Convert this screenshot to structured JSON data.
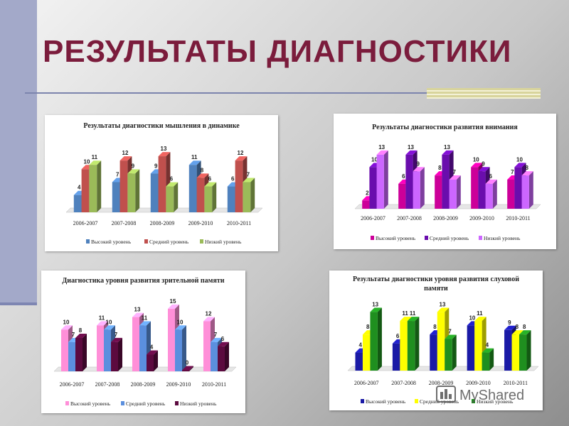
{
  "page": {
    "title": "РЕЗУЛЬТАТЫ ДИАГНОСТИКИ"
  },
  "watermark": {
    "text": "MyShared"
  },
  "colors": {
    "blue": "#4f81bd",
    "red": "#c0504d",
    "green": "#9bbb59",
    "magenta": "#cc0099",
    "purple": "#6a0dad",
    "violet": "#cc66ff",
    "pink": "#ff8fd8",
    "lightblue": "#5b8fde",
    "darkpurple": "#5c0a3f",
    "navy": "#1a1aa6",
    "yellow": "#ffff00",
    "darkgreen": "#1f8f1f"
  },
  "chart_data": [
    {
      "type": "bar",
      "title": "Результаты диагностики мышления в динамике",
      "categories": [
        "2006-2007",
        "2007-2008",
        "2008-2009",
        "2009-2010",
        "2010-2011"
      ],
      "series": [
        {
          "name": "Высокий уровень",
          "color": "#4f81bd",
          "values": [
            4,
            7,
            9,
            11,
            6
          ]
        },
        {
          "name": "Средний уровень",
          "color": "#c0504d",
          "values": [
            10,
            12,
            13,
            8,
            12
          ]
        },
        {
          "name": "Низкий уровень",
          "color": "#9bbb59",
          "values": [
            11,
            9,
            6,
            6,
            7
          ]
        }
      ],
      "ylim": [
        0,
        14
      ],
      "legend": "bottom"
    },
    {
      "type": "bar",
      "title": "Результаты диагностики развития внимания",
      "categories": [
        "2006-2007",
        "2007-2008",
        "2008-2009",
        "2009-2010",
        "2010-2011"
      ],
      "series": [
        {
          "name": "Высокий уровень",
          "color": "#cc0099",
          "values": [
            2,
            6,
            8,
            10,
            7
          ]
        },
        {
          "name": "Средний уровень",
          "color": "#6a0dad",
          "values": [
            10,
            13,
            13,
            9,
            10
          ]
        },
        {
          "name": "Низкий уровень",
          "color": "#cc66ff",
          "values": [
            13,
            9,
            7,
            6,
            8
          ]
        }
      ],
      "ylim": [
        0,
        14
      ],
      "legend": "bottom"
    },
    {
      "type": "bar",
      "title": "Диагностика уровня развития зрительной памяти",
      "categories": [
        "2006-2007",
        "2007-2008",
        "2008-2009",
        "2009-2010",
        "2010-2011"
      ],
      "series": [
        {
          "name": "Высокий уровень",
          "color": "#ff8fd8",
          "values": [
            10,
            11,
            13,
            15,
            12
          ]
        },
        {
          "name": "Средний уровень",
          "color": "#5b8fde",
          "values": [
            7,
            10,
            11,
            10,
            7
          ]
        },
        {
          "name": "Низкий уровень",
          "color": "#5c0a3f",
          "values": [
            8,
            7,
            4,
            0,
            6
          ]
        }
      ],
      "ylim": [
        0,
        16
      ],
      "legend": "bottom"
    },
    {
      "type": "bar",
      "title": "Результаты диагностики уровня развития слуховой памяти",
      "categories": [
        "2006-2007",
        "2007-2008",
        "2008-2009",
        "2009-2010",
        "2010-2011"
      ],
      "series": [
        {
          "name": "Высокий уровень",
          "color": "#1a1aa6",
          "values": [
            4,
            6,
            8,
            10,
            9
          ]
        },
        {
          "name": "Средний уровень",
          "color": "#ffff00",
          "values": [
            8,
            11,
            13,
            11,
            8
          ]
        },
        {
          "name": "Низкий уровень",
          "color": "#1f8f1f",
          "values": [
            13,
            11,
            7,
            4,
            8
          ]
        }
      ],
      "ylim": [
        0,
        14
      ],
      "legend": "bottom"
    }
  ]
}
